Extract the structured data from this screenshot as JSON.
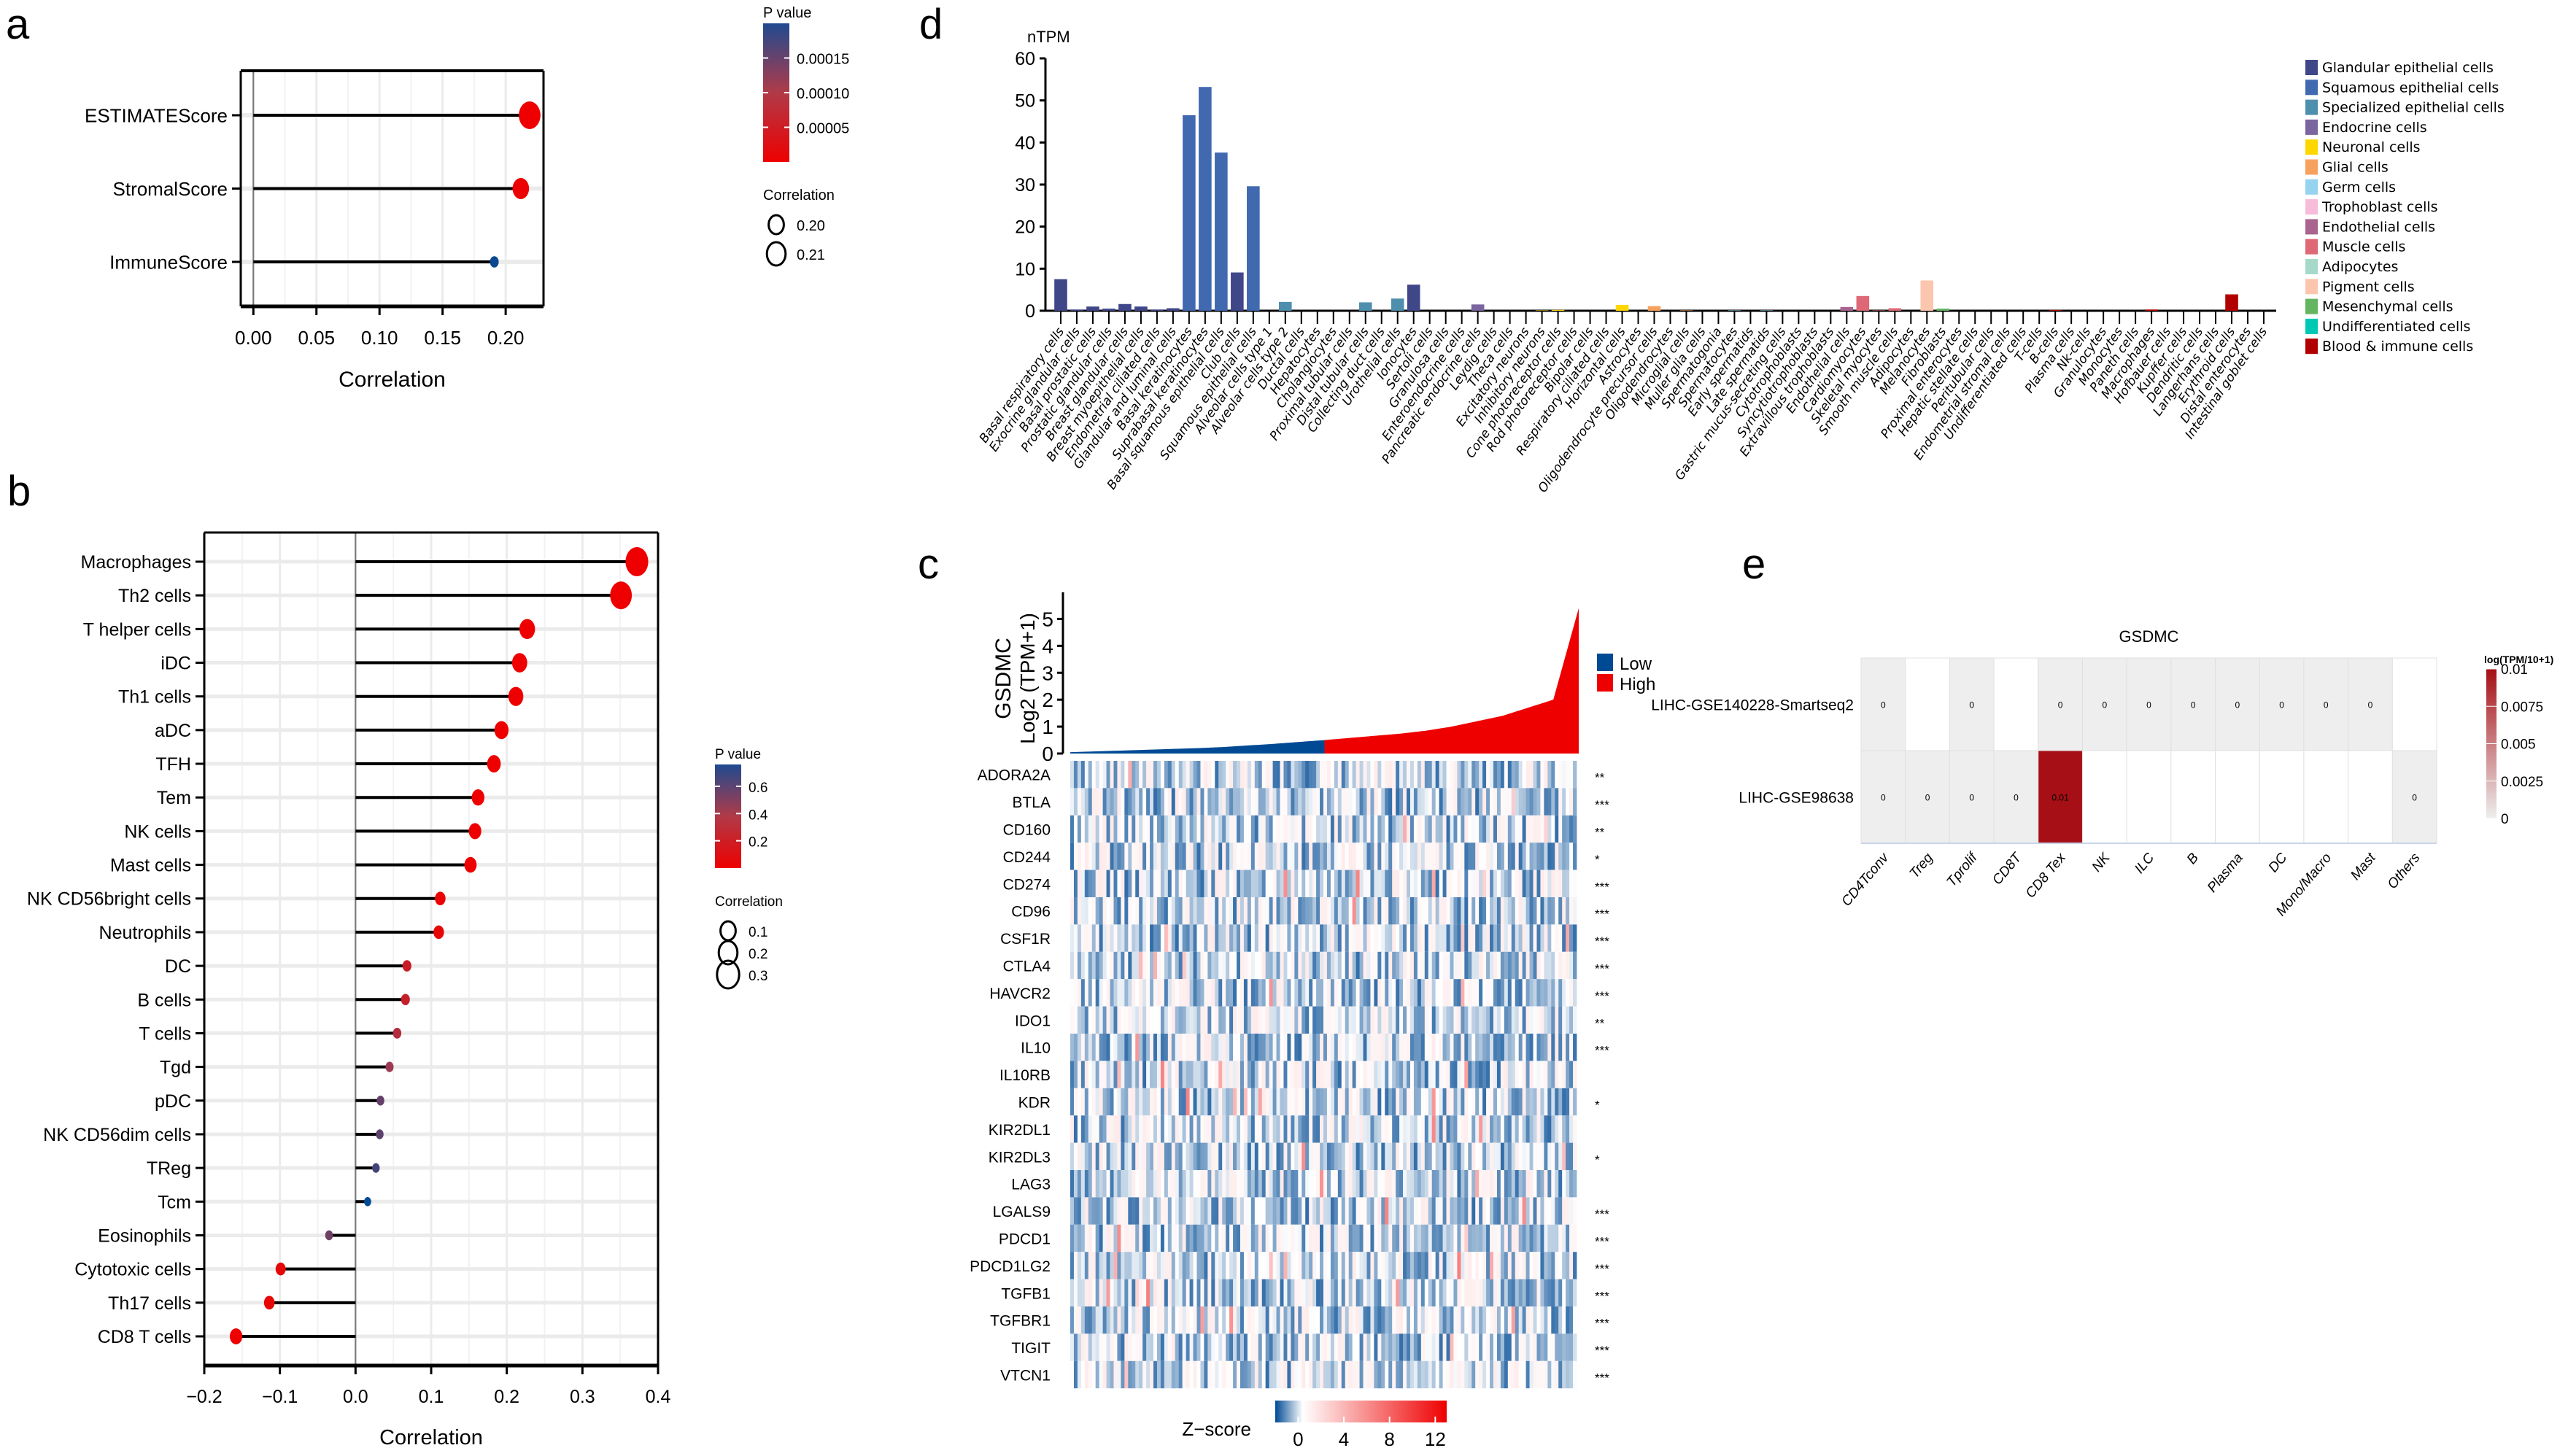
{
  "panels": {
    "a": "a",
    "b": "b",
    "c": "c",
    "d": "d",
    "e": "e"
  },
  "chart_data": [
    {
      "id": "a",
      "type": "scatter",
      "subtype": "lollipop",
      "title": "",
      "xlabel": "Correlation",
      "ylabel": "",
      "xlim": [
        -0.01,
        0.23
      ],
      "xticks": [
        0.0,
        0.05,
        0.1,
        0.15,
        0.2
      ],
      "xtick_labels": [
        "0.00",
        "0.05",
        "0.10",
        "0.15",
        "0.20"
      ],
      "grid": true,
      "categories": [
        "ESTIMATEScore",
        "StromalScore",
        "ImmuneScore"
      ],
      "values": [
        0.219,
        0.212,
        0.191
      ],
      "pvalues": [
        1e-07,
        3e-06,
        0.000195
      ],
      "legend": {
        "color_title": "P value",
        "color_ticks": [
          "0.00015",
          "0.00010",
          "0.00005"
        ],
        "color_tick_values": [
          0.00015,
          0.0001,
          5e-05
        ],
        "color_range": [
          0,
          0.0002
        ],
        "size_title": "Correlation",
        "size_labels": [
          "0.20",
          "0.21"
        ],
        "placement": "right"
      }
    },
    {
      "id": "b",
      "type": "scatter",
      "subtype": "lollipop",
      "title": "",
      "xlabel": "Correlation",
      "ylabel": "",
      "xlim": [
        -0.2,
        0.4
      ],
      "xticks": [
        -0.2,
        -0.1,
        0.0,
        0.1,
        0.2,
        0.3,
        0.4
      ],
      "xtick_labels": [
        "−0.2",
        "−0.1",
        "0.0",
        "0.1",
        "0.2",
        "0.3",
        "0.4"
      ],
      "grid": true,
      "categories": [
        "Macrophages",
        "Th2 cells",
        "T helper cells",
        "iDC",
        "Th1 cells",
        "aDC",
        "TFH",
        "Tem",
        "NK cells",
        "Mast cells",
        "NK CD56bright cells",
        "Neutrophils",
        "DC",
        "B cells",
        "T cells",
        "Tgd",
        "pDC",
        "NK CD56dim cells",
        "TReg",
        "Tcm",
        "Eosinophils",
        "Cytotoxic cells",
        "Th17 cells",
        "CD8 T cells"
      ],
      "values": [
        0.372,
        0.351,
        0.227,
        0.217,
        0.212,
        0.193,
        0.183,
        0.162,
        0.158,
        0.152,
        0.112,
        0.11,
        0.068,
        0.066,
        0.055,
        0.045,
        0.033,
        0.032,
        0.027,
        0.016,
        -0.035,
        -0.099,
        -0.114,
        -0.158
      ],
      "pvalues": [
        0.0,
        0.0,
        0.0,
        0.0,
        0.0,
        0.0,
        0.0,
        0.0,
        0.0,
        0.0,
        0.02,
        0.03,
        0.19,
        0.2,
        0.29,
        0.39,
        0.52,
        0.54,
        0.6,
        0.76,
        0.5,
        0.05,
        0.03,
        0.002
      ],
      "legend": {
        "color_title": "P value",
        "color_ticks": [
          "0.6",
          "0.4",
          "0.2"
        ],
        "color_tick_values": [
          0.6,
          0.4,
          0.2
        ],
        "color_range": [
          0,
          0.76
        ],
        "size_title": "Correlation",
        "size_labels": [
          "0.1",
          "0.2",
          "0.3"
        ],
        "placement": "right"
      }
    },
    {
      "id": "d",
      "type": "bar",
      "title": "",
      "ylabel": "nTPM",
      "xlabel": "",
      "ylim": [
        0,
        60
      ],
      "yticks": [
        0,
        10,
        20,
        30,
        40,
        50,
        60
      ],
      "categories": [
        "Basal respiratory cells",
        "Exocrine glandular cells",
        "Basal prostatic cells",
        "Prostatic glandular cells",
        "Breast glandular cells",
        "Breast myoepithelial cells",
        "Endometrial ciliated cells",
        "Glandular and luminal cells",
        "Basal keratinocytes",
        "Suprabasal keratinocytes",
        "Basal squamous epithelial cells",
        "Club cells",
        "Squamous epithelial cells",
        "Alveolar cells type 1",
        "Alveolar cells type 2",
        "Ductal cells",
        "Hepatocytes",
        "Cholangiocytes",
        "Proximal tubular cells",
        "Distal tubular cells",
        "Collecting duct cells",
        "Urothelial cells",
        "Ionocytes",
        "Sertoli cells",
        "Granulosa cells",
        "Enteroendocrine cells",
        "Pancreatic endocrine cells",
        "Leydig cells",
        "Theca cells",
        "Excitatory neurons",
        "Inhibitory neurons",
        "Cone photoreceptor cells",
        "Rod photoreceptor cells",
        "Bipolar cells",
        "Respiratory ciliated cells",
        "Horizontal cells",
        "Astrocytes",
        "Oligodendrocyte precursor cells",
        "Oligodendrocytes",
        "Microglial cells",
        "Muller glia cells",
        "Spermatogonia",
        "Spermatocytes",
        "Early spermatids",
        "Late spermatids",
        "Gastric mucus-secreting cells",
        "Cytotrophoblasts",
        "Syncytiotrophoblasts",
        "Extravillous trophoblasts",
        "Endothelial cells",
        "Cardiomyocytes",
        "Skeletal myocytes",
        "Smooth muscle cells",
        "Adipocytes",
        "Melanocytes",
        "Fibroblasts",
        "Proximal enterocytes",
        "Hepatic stellate cells",
        "Peritubular cells",
        "Endometrial stromal cells",
        "Undifferentiated cells",
        "T-cells",
        "B-cells",
        "Plasma cells",
        "Nk-cells",
        "Granulocytes",
        "Monocytes",
        "Paneth cells",
        "Macrophages",
        "Hofbauer cells",
        "Kupffer cells",
        "Dendritic cells",
        "Langerhans cells",
        "Erythroid cells",
        "Distal enterocytes",
        "Intestinal goblet cells"
      ],
      "values": [
        7.5,
        0.3,
        1.0,
        0.5,
        1.6,
        1.0,
        0.3,
        0.6,
        46.5,
        53.2,
        37.6,
        9.1,
        29.6,
        0.0,
        2.1,
        0.0,
        0.0,
        0.0,
        0.0,
        2.0,
        0.0,
        2.9,
        6.2,
        0.0,
        0.0,
        0.0,
        1.5,
        0.0,
        0.0,
        0.0,
        0.1,
        0.2,
        0.0,
        0.0,
        0.0,
        1.4,
        0.0,
        1.1,
        0.0,
        0.1,
        0.0,
        0.0,
        0.1,
        0.0,
        0.1,
        0.0,
        0.0,
        0.0,
        0.0,
        0.9,
        3.5,
        0.1,
        0.6,
        0.0,
        7.2,
        0.5,
        0.0,
        0.0,
        0.0,
        0.0,
        0.0,
        0.0,
        0.2,
        0.0,
        0.0,
        0.0,
        0.0,
        0.0,
        0.3,
        0.0,
        0.0,
        0.0,
        0.0,
        3.9,
        0.0,
        0.0
      ],
      "groups": [
        0,
        0,
        0,
        0,
        0,
        0,
        0,
        0,
        1,
        1,
        1,
        0,
        1,
        2,
        2,
        2,
        2,
        2,
        2,
        2,
        2,
        2,
        0,
        3,
        3,
        3,
        3,
        3,
        3,
        4,
        4,
        4,
        4,
        4,
        2,
        4,
        5,
        5,
        5,
        5,
        5,
        6,
        6,
        6,
        6,
        0,
        7,
        7,
        7,
        8,
        9,
        9,
        9,
        10,
        11,
        12,
        0,
        12,
        12,
        12,
        13,
        14,
        14,
        14,
        14,
        14,
        14,
        0,
        14,
        14,
        14,
        14,
        14,
        14,
        0,
        0
      ],
      "legend": {
        "placement": "right",
        "entries": [
          {
            "name": "Glandular epithelial cells",
            "color": "#3f4788"
          },
          {
            "name": "Squamous epithelial cells",
            "color": "#4169b0"
          },
          {
            "name": "Specialized epithelial cells",
            "color": "#4f8fae"
          },
          {
            "name": "Endocrine cells",
            "color": "#7a659e"
          },
          {
            "name": "Neuronal cells",
            "color": "#ffd700"
          },
          {
            "name": "Glial cells",
            "color": "#f7a15e"
          },
          {
            "name": "Germ cells",
            "color": "#95d3f0"
          },
          {
            "name": "Trophoblast cells",
            "color": "#f6bcd9"
          },
          {
            "name": "Endothelial cells",
            "color": "#a8648f"
          },
          {
            "name": "Muscle cells",
            "color": "#de6876"
          },
          {
            "name": "Adipocytes",
            "color": "#a6d9c9"
          },
          {
            "name": "Pigment cells",
            "color": "#fbc6ad"
          },
          {
            "name": "Mesenchymal cells",
            "color": "#63b55f"
          },
          {
            "name": "Undifferentiated cells",
            "color": "#00c9b3"
          },
          {
            "name": "Blood & immune cells",
            "color": "#b20000"
          }
        ]
      }
    },
    {
      "id": "c",
      "type": "heatmap",
      "title": "",
      "top_plot": {
        "type": "area",
        "ylabel_line1": "GSDMC",
        "ylabel_line2": "Log2 (TPM+1)",
        "ylim": [
          0,
          5.5
        ],
        "yticks": [
          0,
          1,
          2,
          3,
          4,
          5
        ],
        "legend": [
          {
            "name": "Low",
            "color": "#004a94"
          },
          {
            "name": "High",
            "color": "#ee0000"
          }
        ],
        "low_fraction": 0.5,
        "sorted_profile": [
          0.05,
          0.08,
          0.11,
          0.14,
          0.17,
          0.2,
          0.24,
          0.3,
          0.36,
          0.43,
          0.5,
          0.58,
          0.66,
          0.74,
          0.85,
          1.0,
          1.2,
          1.4,
          1.7,
          2.0,
          5.4
        ]
      },
      "genes": [
        "ADORA2A",
        "BTLA",
        "CD160",
        "CD244",
        "CD274",
        "CD96",
        "CSF1R",
        "CTLA4",
        "HAVCR2",
        "IDO1",
        "IL10",
        "IL10RB",
        "KDR",
        "KIR2DL1",
        "KIR2DL3",
        "LAG3",
        "LGALS9",
        "PDCD1",
        "PDCD1LG2",
        "TGFB1",
        "TGFBR1",
        "TIGIT",
        "VTCN1"
      ],
      "significance": [
        "**",
        "***",
        "**",
        "*",
        "***",
        "***",
        "***",
        "***",
        "***",
        "**",
        "***",
        "",
        "*",
        "",
        "*",
        "",
        "***",
        "***",
        "***",
        "***",
        "***",
        "***",
        "***"
      ],
      "colorbar": {
        "title": "Z−score",
        "ticks": [
          "0",
          "4",
          "8",
          "12"
        ],
        "tick_values": [
          0,
          4,
          8,
          12
        ],
        "range": [
          -2,
          13
        ],
        "low_color": "#004a94",
        "mid_color": "#ffffff",
        "high_color": "#ee0000"
      }
    },
    {
      "id": "e",
      "type": "heatmap",
      "title": "GSDMC",
      "rows": [
        "LIHC-GSE140228-Smartseq2",
        "LIHC-GSE98638"
      ],
      "columns": [
        "CD4Tconv",
        "Treg",
        "Tprolif",
        "CD8T",
        "CD8 Tex",
        "NK",
        "ILC",
        "B",
        "Plasma",
        "DC",
        "Mono/Macro",
        "Mast",
        "Others"
      ],
      "values": [
        [
          0,
          null,
          0,
          null,
          0,
          0,
          0,
          0,
          0,
          0,
          0,
          0,
          null
        ],
        [
          0,
          0,
          0,
          0,
          0.01,
          null,
          null,
          null,
          null,
          null,
          null,
          null,
          0
        ]
      ],
      "cell_labels": [
        [
          "0",
          "",
          "0",
          "",
          "0",
          "0",
          "0",
          "0",
          "0",
          "0",
          "0",
          "0",
          ""
        ],
        [
          "0",
          "0",
          "0",
          "0",
          "0.01",
          "",
          "",
          "",
          "",
          "",
          "",
          "",
          "0"
        ]
      ],
      "colorbar": {
        "title": "log(TPM/10+1)",
        "ticks": [
          "0.01",
          "0.0075",
          "0.005",
          "0.0025",
          "0"
        ],
        "tick_values": [
          0.01,
          0.0075,
          0.005,
          0.0025,
          0
        ],
        "range": [
          0,
          0.01
        ],
        "low_color": "#eeeeee",
        "high_color": "#a50f15"
      }
    }
  ]
}
